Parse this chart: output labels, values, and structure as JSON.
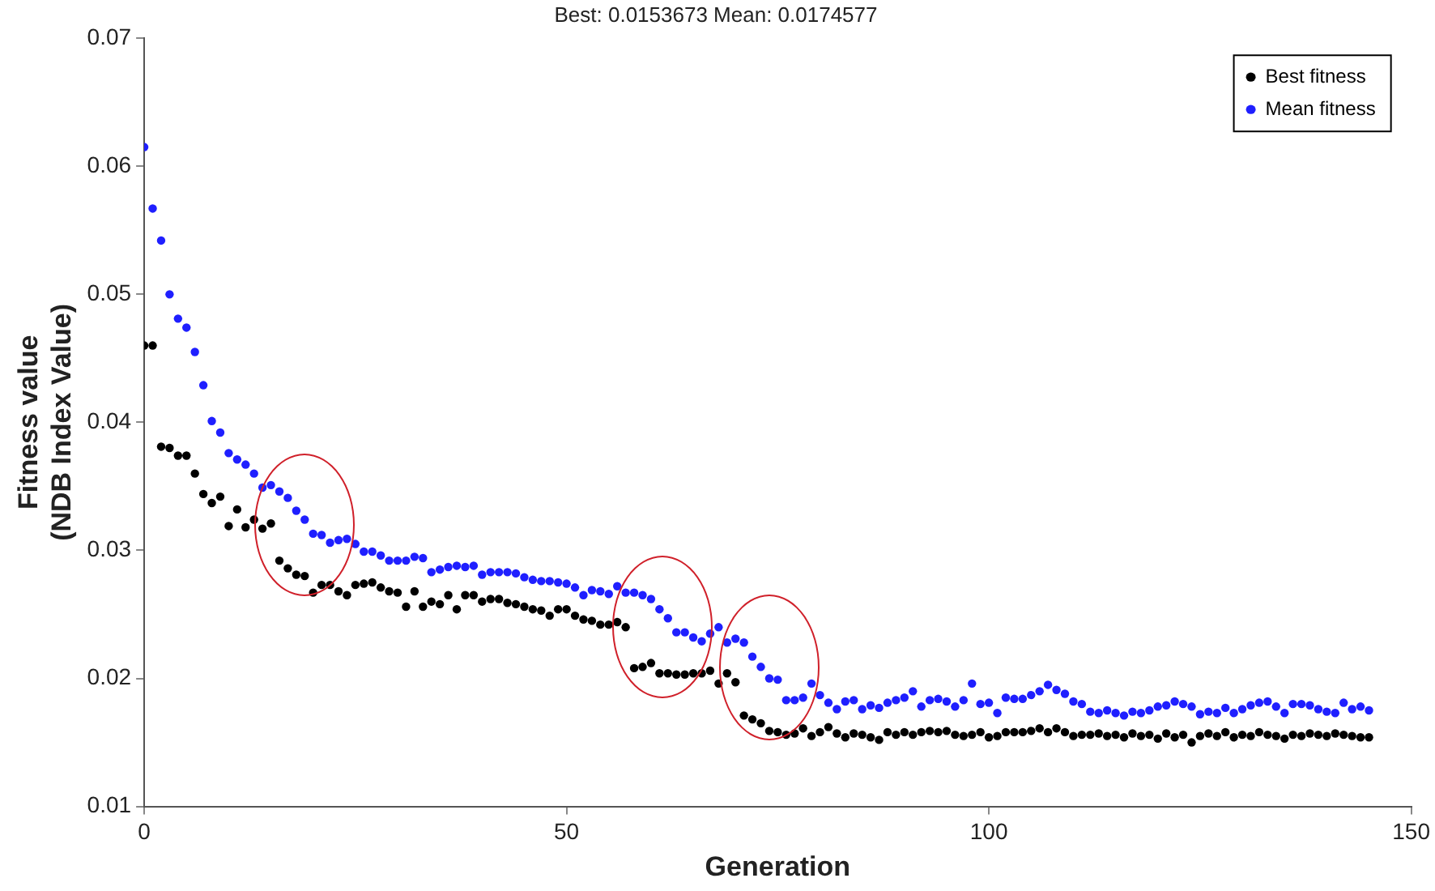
{
  "chart_data": {
    "type": "scatter",
    "title": "Best: 0.0153673 Mean: 0.0174577",
    "xlabel": "Generation",
    "ylabel": "Fitness value\n(NDB Index Value)",
    "x": [
      0,
      1,
      2,
      3,
      4,
      5,
      6,
      7,
      8,
      9,
      10,
      11,
      12,
      13,
      14,
      15,
      16,
      17,
      18,
      19,
      20,
      21,
      22,
      23,
      24,
      25,
      26,
      27,
      28,
      29,
      30,
      31,
      32,
      33,
      34,
      35,
      36,
      37,
      38,
      39,
      40,
      41,
      42,
      43,
      44,
      45,
      46,
      47,
      48,
      49,
      50,
      51,
      52,
      53,
      54,
      55,
      56,
      57,
      58,
      59,
      60,
      61,
      62,
      63,
      64,
      65,
      66,
      67,
      68,
      69,
      70,
      71,
      72,
      73,
      74,
      75,
      76,
      77,
      78,
      79,
      80,
      81,
      82,
      83,
      84,
      85,
      86,
      87,
      88,
      89,
      90,
      91,
      92,
      93,
      94,
      95,
      96,
      97,
      98,
      99,
      100,
      101,
      102,
      103,
      104,
      105,
      106,
      107,
      108,
      109,
      110,
      111,
      112,
      113,
      114,
      115,
      116,
      117,
      118,
      119,
      120,
      121,
      122,
      123,
      124,
      125,
      126,
      127,
      128,
      129,
      130,
      131,
      132,
      133,
      134,
      135,
      136,
      137,
      138,
      139,
      140,
      141,
      142,
      143,
      144,
      145
    ],
    "series": [
      {
        "name": "Best fitness",
        "color": "#000000",
        "values": [
          0.046,
          0.046,
          0.0381,
          0.038,
          0.0374,
          0.0374,
          0.036,
          0.0344,
          0.0337,
          0.0342,
          0.0319,
          0.0332,
          0.0318,
          0.0324,
          0.0317,
          0.0321,
          0.0292,
          0.0286,
          0.0281,
          0.028,
          0.0267,
          0.0273,
          0.0273,
          0.0268,
          0.0265,
          0.0273,
          0.0274,
          0.0275,
          0.0271,
          0.0268,
          0.0267,
          0.0256,
          0.0268,
          0.0256,
          0.026,
          0.0258,
          0.0265,
          0.0254,
          0.0265,
          0.0265,
          0.026,
          0.0262,
          0.0262,
          0.0259,
          0.0258,
          0.0256,
          0.0254,
          0.0253,
          0.0249,
          0.0254,
          0.0254,
          0.0249,
          0.0246,
          0.0245,
          0.0242,
          0.0242,
          0.0244,
          0.024,
          0.0208,
          0.0209,
          0.0212,
          0.0204,
          0.0204,
          0.0203,
          0.0203,
          0.0204,
          0.0204,
          0.0206,
          0.0196,
          0.0204,
          0.0197,
          0.0171,
          0.0168,
          0.0165,
          0.0159,
          0.0158,
          0.0156,
          0.0157,
          0.0161,
          0.0155,
          0.0158,
          0.0162,
          0.0157,
          0.0154,
          0.0157,
          0.0156,
          0.0154,
          0.0152,
          0.0158,
          0.0156,
          0.0158,
          0.0156,
          0.0158,
          0.0159,
          0.0158,
          0.0159,
          0.0156,
          0.0155,
          0.0156,
          0.0158,
          0.0154,
          0.0155,
          0.0158,
          0.0158,
          0.0158,
          0.0159,
          0.0161,
          0.0158,
          0.0161,
          0.0158,
          0.0155,
          0.0156,
          0.0156,
          0.0157,
          0.0155,
          0.0156,
          0.0154,
          0.0157,
          0.0155,
          0.0156,
          0.0153,
          0.0157,
          0.0154,
          0.0156,
          0.015,
          0.0155,
          0.0157,
          0.0155,
          0.0158,
          0.0154,
          0.0156,
          0.0155,
          0.0158,
          0.0156,
          0.0155,
          0.0153,
          0.0156,
          0.0155,
          0.0157,
          0.0156,
          0.0155,
          0.0157,
          0.0156,
          0.0155,
          0.0154,
          0.0154
        ]
      },
      {
        "name": "Mean fitness",
        "color": "#1f1fff",
        "values": [
          0.0615,
          0.0567,
          0.0542,
          0.05,
          0.0481,
          0.0474,
          0.0455,
          0.0429,
          0.0401,
          0.0392,
          0.0376,
          0.0371,
          0.0367,
          0.036,
          0.0349,
          0.0351,
          0.0346,
          0.0341,
          0.0331,
          0.0324,
          0.0313,
          0.0312,
          0.0306,
          0.0308,
          0.0309,
          0.0305,
          0.0299,
          0.0299,
          0.0296,
          0.0292,
          0.0292,
          0.0292,
          0.0295,
          0.0294,
          0.0283,
          0.0285,
          0.0287,
          0.0288,
          0.0287,
          0.0288,
          0.0281,
          0.0283,
          0.0283,
          0.0283,
          0.0282,
          0.0279,
          0.0277,
          0.0276,
          0.0276,
          0.0275,
          0.0274,
          0.0271,
          0.0265,
          0.0269,
          0.0268,
          0.0266,
          0.0272,
          0.0267,
          0.0267,
          0.0265,
          0.0262,
          0.0254,
          0.0247,
          0.0236,
          0.0236,
          0.0232,
          0.0229,
          0.0235,
          0.024,
          0.0228,
          0.0231,
          0.0228,
          0.0217,
          0.0209,
          0.02,
          0.0199,
          0.0183,
          0.0183,
          0.0185,
          0.0196,
          0.0187,
          0.0181,
          0.0176,
          0.0182,
          0.0183,
          0.0176,
          0.0179,
          0.0177,
          0.0181,
          0.0183,
          0.0185,
          0.019,
          0.0178,
          0.0183,
          0.0184,
          0.0182,
          0.0178,
          0.0183,
          0.0196,
          0.018,
          0.0181,
          0.0173,
          0.0185,
          0.0184,
          0.0184,
          0.0187,
          0.019,
          0.0195,
          0.0191,
          0.0188,
          0.0182,
          0.018,
          0.0174,
          0.0173,
          0.0175,
          0.0173,
          0.0171,
          0.0174,
          0.0173,
          0.0175,
          0.0178,
          0.0179,
          0.0182,
          0.018,
          0.0178,
          0.0172,
          0.0174,
          0.0173,
          0.0177,
          0.0173,
          0.0176,
          0.0179,
          0.0181,
          0.0182,
          0.0178,
          0.0173,
          0.018,
          0.018,
          0.0179,
          0.0176,
          0.0174,
          0.0173,
          0.0181,
          0.0176,
          0.0178,
          0.0175
        ]
      }
    ],
    "xlim": [
      0,
      150
    ],
    "xticks": [
      0,
      50,
      100,
      150
    ],
    "ylim": [
      0.01,
      0.07
    ],
    "yticks": [
      0.01,
      0.02,
      0.03,
      0.04,
      0.05,
      0.06,
      0.07
    ],
    "grid": false,
    "legend": "top right",
    "marker": "circle"
  }
}
